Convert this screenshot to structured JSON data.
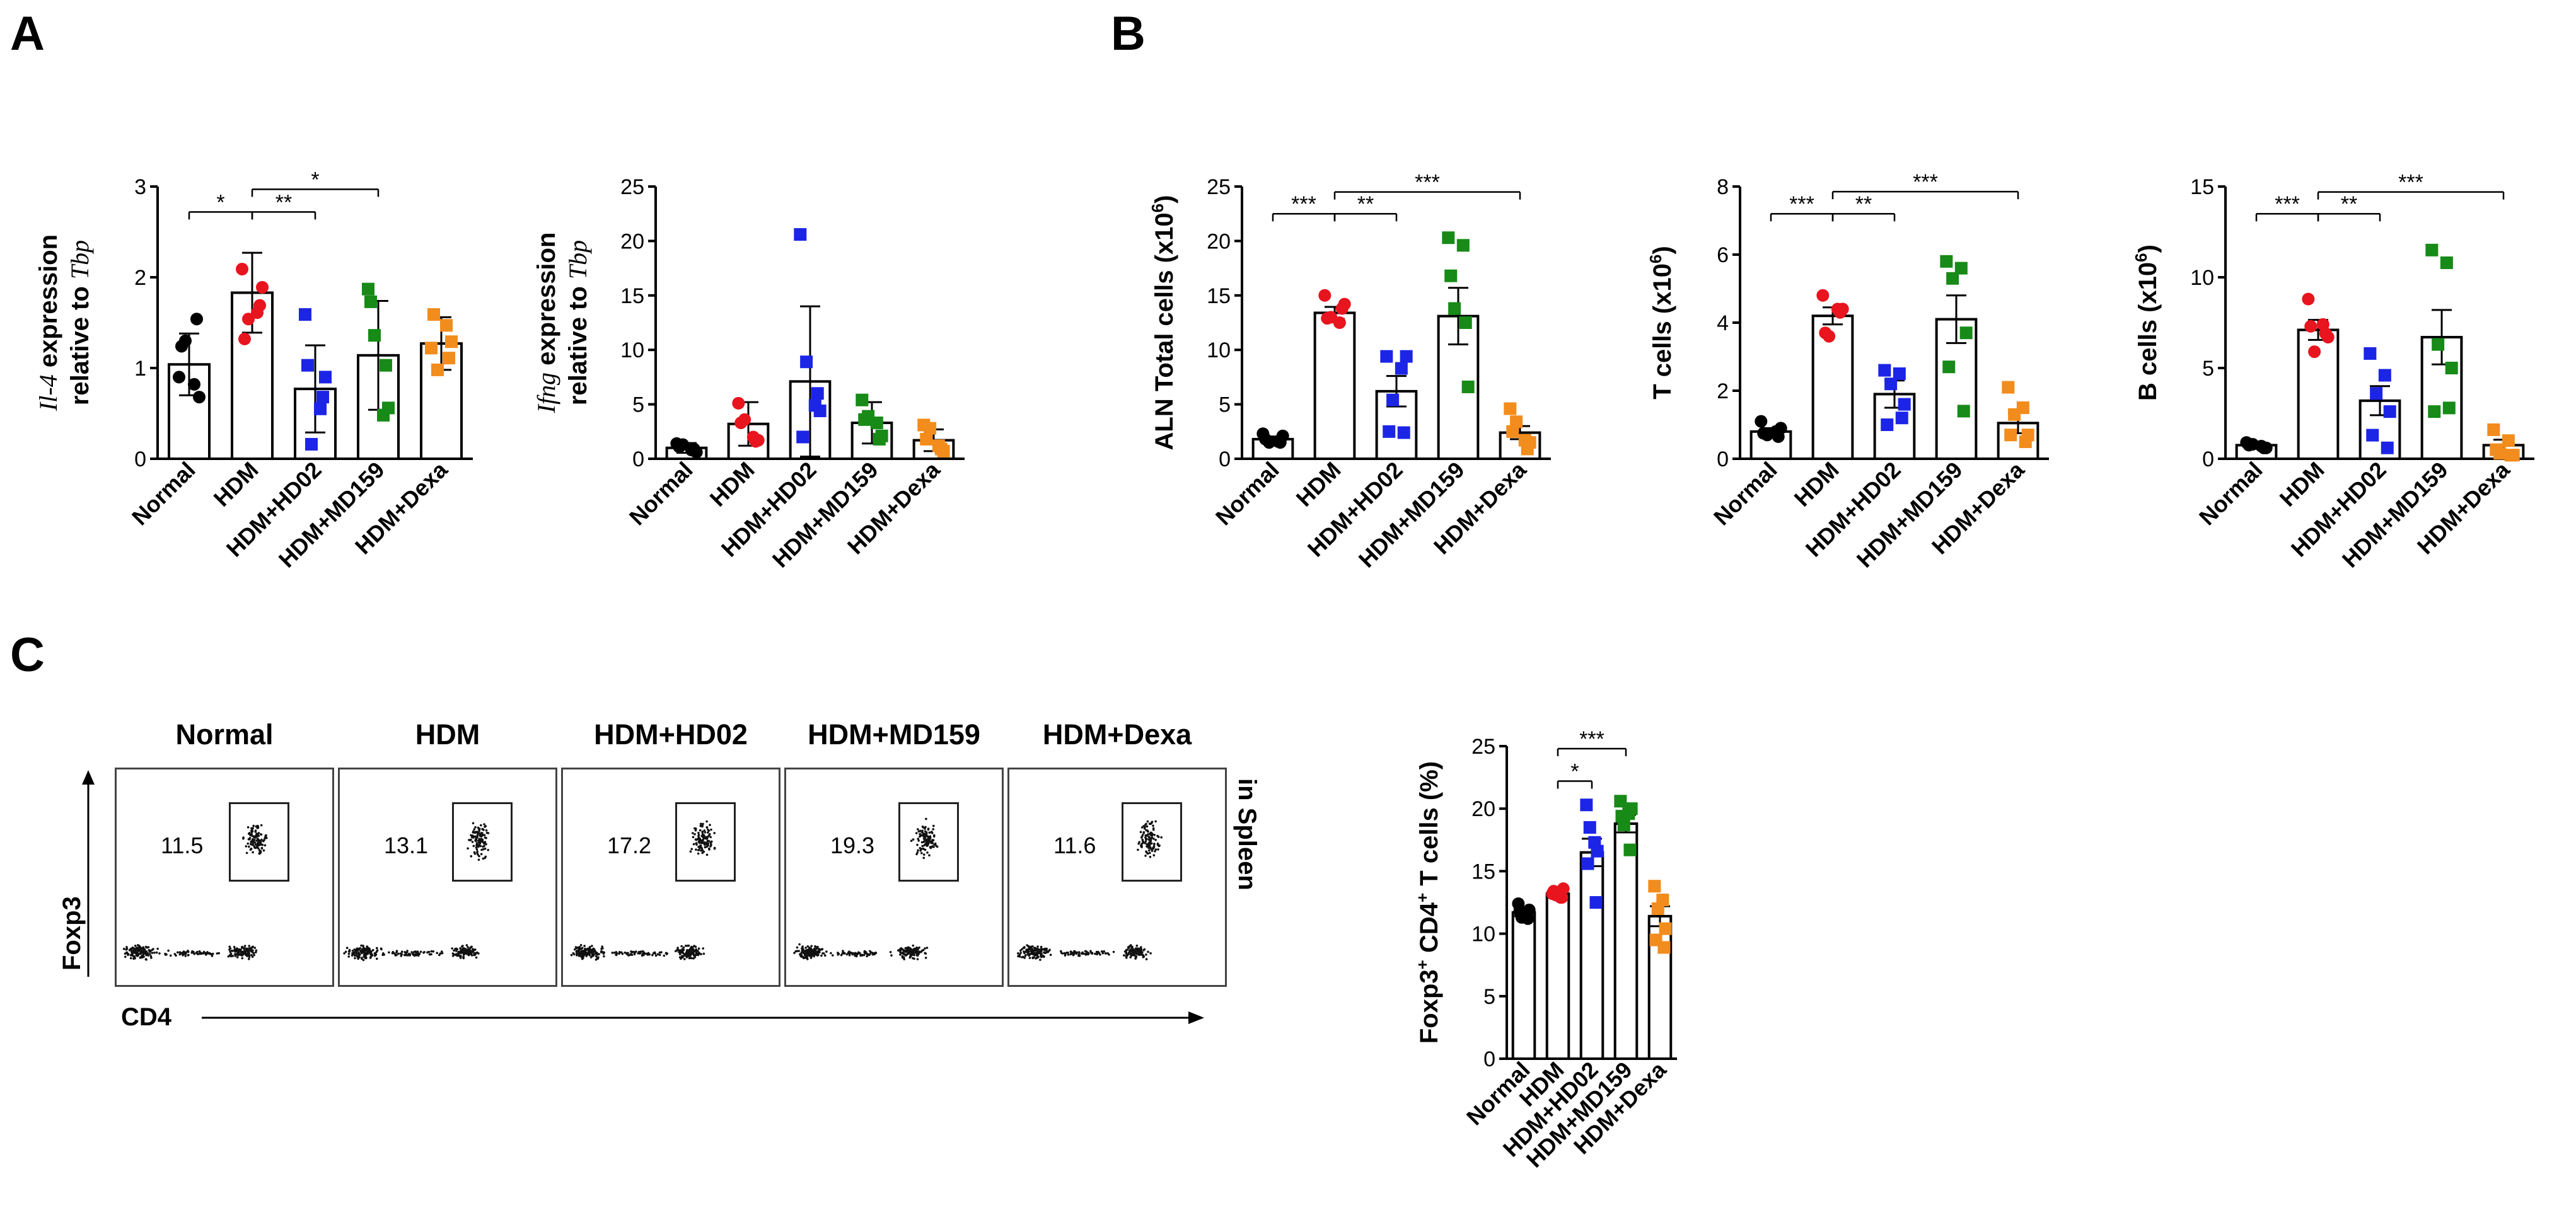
{
  "panel_labels": {
    "a": "A",
    "b": "B",
    "c": "C"
  },
  "chart_data": [
    {
      "id": "il4",
      "type": "bar",
      "error_style": "sd",
      "categories": [
        "Normal",
        "HDM",
        "HDM+HD02",
        "HDM+MD159",
        "HDM+Dexa"
      ],
      "values": [
        1.04,
        1.83,
        0.77,
        1.14,
        1.27
      ],
      "error": [
        0.34,
        0.44,
        0.48,
        0.6,
        0.29
      ],
      "points": [
        [
          0.9,
          0.82,
          1.3,
          0.68,
          1.24,
          1.54
        ],
        [
          2.09,
          1.61,
          1.54,
          1.89,
          1.32,
          1.69
        ],
        [
          1.59,
          0.55,
          0.16,
          0.9,
          1.03,
          0.68
        ],
        [
          1.87,
          0.48,
          1.36,
          0.56,
          1.73,
          1.03
        ],
        [
          1.22,
          1.47,
          0.98,
          1.29,
          1.59,
          1.11
        ]
      ],
      "point_colors": [
        "#000000",
        "#e8141e",
        "#1c25e6",
        "#178a17",
        "#f28c1c"
      ],
      "ylim": [
        0,
        3
      ],
      "yticks": [
        "0",
        "1",
        "2",
        "3"
      ],
      "ylabel_lines": [
        [
          "Il-4",
          " expression"
        ],
        [
          "relative to ",
          "Tbp"
        ]
      ],
      "sig": [
        {
          "from": 0,
          "to": 1,
          "label": "*",
          "y": 2.72
        },
        {
          "from": 1,
          "to": 2,
          "label": "**",
          "y": 2.72
        },
        {
          "from": 1,
          "to": 3,
          "label": "*",
          "y": 2.97
        }
      ]
    },
    {
      "id": "ifng",
      "type": "bar",
      "error_style": "sd",
      "categories": [
        "Normal",
        "HDM",
        "HDM+HD02",
        "HDM+MD159",
        "HDM+Dexa"
      ],
      "values": [
        1.0,
        3.2,
        7.1,
        3.3,
        1.7
      ],
      "error": [
        0.45,
        2.0,
        6.9,
        1.9,
        1.0
      ],
      "points": [
        [
          1.4,
          0.8,
          1.3,
          0.6,
          1.1,
          0.9
        ],
        [
          5.1,
          2.0,
          3.6,
          1.7,
          3.3,
          1.6
        ],
        [
          20.6,
          4.9,
          8.9,
          4.4,
          2.0,
          6.0
        ],
        [
          5.4,
          3.3,
          3.9,
          2.1,
          3.6,
          1.8
        ],
        [
          3.1,
          1.2,
          2.8,
          0.7,
          1.8,
          0.9
        ]
      ],
      "point_colors": [
        "#000000",
        "#e8141e",
        "#1c25e6",
        "#178a17",
        "#f28c1c"
      ],
      "ylim": [
        0,
        25
      ],
      "yticks": [
        "0",
        "5",
        "10",
        "15",
        "20",
        "25"
      ],
      "ylabel_lines": [
        [
          "Ifng",
          " expression"
        ],
        [
          "relative to ",
          "Tbp"
        ]
      ],
      "sig": []
    },
    {
      "id": "aln",
      "type": "bar",
      "error_style": "sem",
      "categories": [
        "Normal",
        "HDM",
        "HDM+HD02",
        "HDM+MD159",
        "HDM+Dexa"
      ],
      "values": [
        1.8,
        13.4,
        6.2,
        13.1,
        2.4
      ],
      "error": [
        0.25,
        0.55,
        1.4,
        2.6,
        0.6
      ],
      "points": [
        [
          2.3,
          1.6,
          1.5,
          2.1,
          1.8,
          1.5
        ],
        [
          15.0,
          12.5,
          13.0,
          14.2,
          12.9,
          13.8
        ],
        [
          9.4,
          8.3,
          5.4,
          9.4,
          2.5,
          2.4
        ],
        [
          20.3,
          19.6,
          13.8,
          6.6,
          16.8,
          12.5
        ],
        [
          4.6,
          1.7,
          3.4,
          1.5,
          2.5,
          0.9
        ]
      ],
      "point_colors": [
        "#000000",
        "#e8141e",
        "#1c25e6",
        "#178a17",
        "#f28c1c"
      ],
      "ylim": [
        0,
        25
      ],
      "yticks": [
        "0",
        "5",
        "10",
        "15",
        "20",
        "25"
      ],
      "ylabel": "ALN Total cells (x10",
      "ylabel_sup": "6",
      "ylabel_end": ")",
      "sig": [
        {
          "from": 0,
          "to": 1,
          "label": "***",
          "y": 22.5
        },
        {
          "from": 1,
          "to": 2,
          "label": "**",
          "y": 22.5
        },
        {
          "from": 1,
          "to": 4,
          "label": "***",
          "y": 24.5
        }
      ]
    },
    {
      "id": "tcells",
      "type": "bar",
      "error_style": "sem",
      "categories": [
        "Normal",
        "HDM",
        "HDM+HD02",
        "HDM+MD159",
        "HDM+Dexa"
      ],
      "values": [
        0.8,
        4.2,
        1.9,
        4.1,
        1.05
      ],
      "error": [
        0.1,
        0.25,
        0.4,
        0.7,
        0.3
      ],
      "points": [
        [
          1.1,
          0.8,
          0.7,
          0.9,
          0.75,
          0.65
        ],
        [
          4.8,
          4.4,
          3.6,
          4.4,
          3.7,
          4.3
        ],
        [
          2.6,
          2.5,
          2.2,
          1.6,
          1.0,
          1.2
        ],
        [
          5.8,
          5.6,
          5.3,
          3.7,
          2.7,
          1.4
        ],
        [
          2.1,
          1.5,
          1.3,
          0.7,
          0.7,
          0.5
        ]
      ],
      "point_colors": [
        "#000000",
        "#e8141e",
        "#1c25e6",
        "#178a17",
        "#f28c1c"
      ],
      "ylim": [
        0,
        8
      ],
      "yticks": [
        "0",
        "2",
        "4",
        "6",
        "8"
      ],
      "ylabel": "T cells (x10",
      "ylabel_sup": "6",
      "ylabel_end": ")",
      "sig": [
        {
          "from": 0,
          "to": 1,
          "label": "***",
          "y": 7.2
        },
        {
          "from": 1,
          "to": 2,
          "label": "**",
          "y": 7.2
        },
        {
          "from": 1,
          "to": 4,
          "label": "***",
          "y": 7.85
        }
      ]
    },
    {
      "id": "bcells",
      "type": "bar",
      "error_style": "sem",
      "categories": [
        "Normal",
        "HDM",
        "HDM+HD02",
        "HDM+MD159",
        "HDM+Dexa"
      ],
      "values": [
        0.75,
        7.1,
        3.2,
        6.7,
        0.75
      ],
      "error": [
        0.1,
        0.55,
        0.8,
        1.5,
        0.3
      ],
      "points": [
        [
          0.9,
          0.7,
          0.8,
          0.6,
          0.75,
          0.6
        ],
        [
          8.8,
          7.4,
          5.9,
          6.7,
          7.3,
          6.9
        ],
        [
          5.8,
          4.6,
          3.6,
          2.6,
          1.3,
          0.6
        ],
        [
          11.5,
          10.8,
          6.3,
          5.0,
          2.6,
          2.8
        ],
        [
          1.6,
          1.0,
          0.3,
          0.2,
          0.5,
          0.2
        ]
      ],
      "point_colors": [
        "#000000",
        "#e8141e",
        "#1c25e6",
        "#178a17",
        "#f28c1c"
      ],
      "ylim": [
        0,
        15
      ],
      "yticks": [
        "0",
        "5",
        "10",
        "15"
      ],
      "ylabel": "B cells (x10",
      "ylabel_sup": "6",
      "ylabel_end": ")",
      "sig": [
        {
          "from": 0,
          "to": 1,
          "label": "***",
          "y": 13.5
        },
        {
          "from": 1,
          "to": 2,
          "label": "**",
          "y": 13.5
        },
        {
          "from": 1,
          "to": 4,
          "label": "***",
          "y": 14.7
        }
      ]
    },
    {
      "id": "foxp3",
      "type": "bar",
      "error_style": "sem",
      "categories": [
        "Normal",
        "HDM",
        "HDM+HD02",
        "HDM+MD159",
        "HDM+Dexa"
      ],
      "values": [
        11.7,
        13.2,
        16.5,
        18.8,
        11.4
      ],
      "error": [
        0.3,
        0.25,
        1.1,
        0.7,
        0.8
      ],
      "points": [
        [
          12.4,
          11.5,
          11.3,
          11.9,
          11.8,
          11.2
        ],
        [
          13.2,
          12.9,
          13.1,
          13.6,
          13.4,
          12.9
        ],
        [
          20.3,
          17.3,
          18.5,
          16.6,
          15.6,
          12.5
        ],
        [
          20.6,
          19.6,
          18.7,
          20.0,
          19.4,
          16.7
        ],
        [
          13.8,
          12.7,
          12.0,
          10.4,
          9.5,
          8.9
        ]
      ],
      "point_colors": [
        "#000000",
        "#e8141e",
        "#1c25e6",
        "#178a17",
        "#f28c1c"
      ],
      "ylim": [
        0,
        25
      ],
      "yticks": [
        "0",
        "5",
        "10",
        "15",
        "20",
        "25"
      ],
      "ylabel": "Foxp3",
      "ylabel_sup": "+",
      "ylabel_end": " CD4",
      "ylabel_sup2": "+",
      "ylabel_tail": " T cells (%)",
      "sig": [
        {
          "from": 1,
          "to": 2,
          "label": "*",
          "y": 22.2
        },
        {
          "from": 1,
          "to": 3,
          "label": "***",
          "y": 24.8
        }
      ]
    }
  ],
  "flow": {
    "panels": [
      {
        "title": "Normal",
        "value": "11.5"
      },
      {
        "title": "HDM",
        "value": "13.1"
      },
      {
        "title": "HDM+HD02",
        "value": "17.2"
      },
      {
        "title": "HDM+MD159",
        "value": "19.3"
      },
      {
        "title": "HDM+Dexa",
        "value": "11.6"
      }
    ],
    "y_axis": "Foxp3",
    "x_axis": "CD4",
    "tissue": "in Spleen"
  }
}
